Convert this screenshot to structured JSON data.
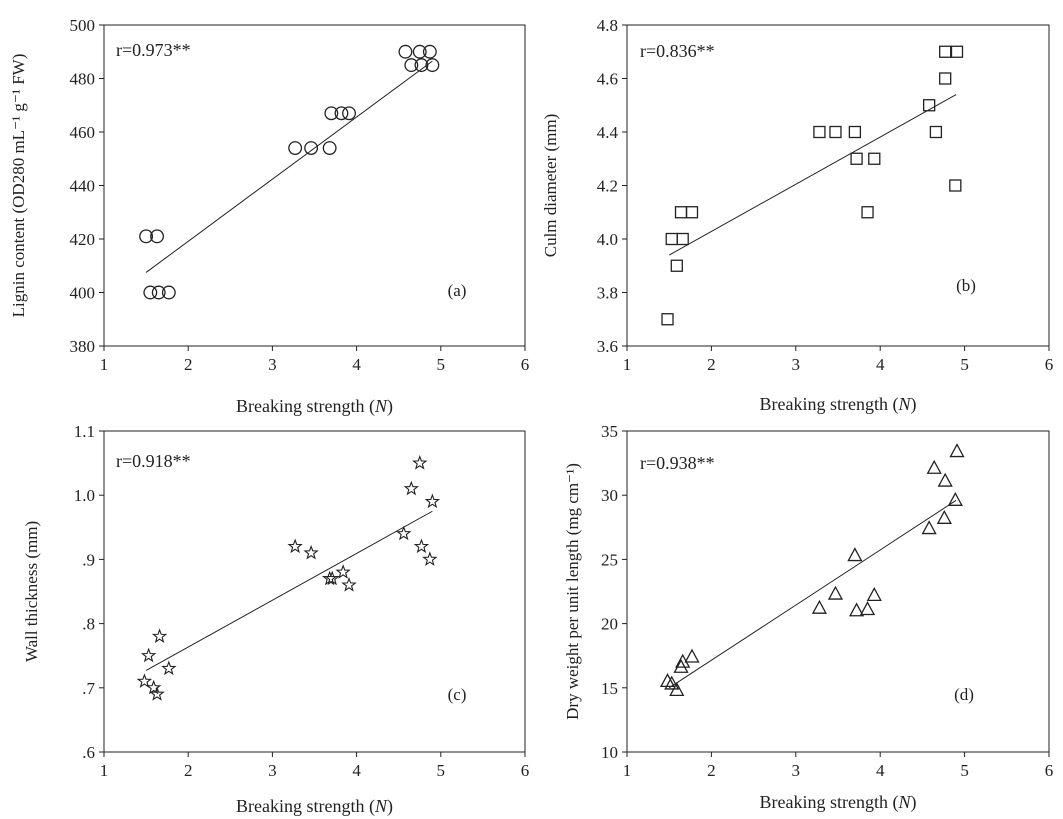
{
  "chart_data": [
    {
      "type": "scatter",
      "panel_label": "(a)",
      "annotation": "r=0.973**",
      "xlabel": "Breaking strength (N)",
      "ylabel": "Lignin content (OD280 mL⁻¹ g⁻¹ FW)",
      "xlim": [
        1,
        6
      ],
      "ylim": [
        380,
        500
      ],
      "xticks": [
        "1",
        "2",
        "3",
        "4",
        "5",
        "6"
      ],
      "yticks": [
        "380",
        "400",
        "420",
        "440",
        "460",
        "480",
        "500"
      ],
      "marker": "circle",
      "points": [
        {
          "x": 1.5,
          "y": 421
        },
        {
          "x": 1.63,
          "y": 421
        },
        {
          "x": 1.55,
          "y": 400
        },
        {
          "x": 1.65,
          "y": 400
        },
        {
          "x": 1.77,
          "y": 400
        },
        {
          "x": 3.27,
          "y": 454
        },
        {
          "x": 3.46,
          "y": 454
        },
        {
          "x": 3.68,
          "y": 454
        },
        {
          "x": 3.7,
          "y": 467
        },
        {
          "x": 3.82,
          "y": 467
        },
        {
          "x": 3.91,
          "y": 467
        },
        {
          "x": 4.58,
          "y": 490
        },
        {
          "x": 4.75,
          "y": 490
        },
        {
          "x": 4.87,
          "y": 490
        },
        {
          "x": 4.65,
          "y": 485
        },
        {
          "x": 4.77,
          "y": 485
        },
        {
          "x": 4.9,
          "y": 485
        }
      ],
      "trendline": {
        "x": [
          1.5,
          4.9
        ],
        "y": [
          407.5,
          486.5
        ]
      }
    },
    {
      "type": "scatter",
      "panel_label": "(b)",
      "annotation": "r=0.836**",
      "xlabel": "Breaking strength (N)",
      "ylabel": "Culm diameter (mm)",
      "xlim": [
        1,
        6
      ],
      "ylim": [
        3.6,
        4.8
      ],
      "xticks": [
        "1",
        "2",
        "3",
        "4",
        "5",
        "6"
      ],
      "yticks": [
        "3.6",
        "3.8",
        "4.0",
        "4.2",
        "4.4",
        "4.6",
        "4.8"
      ],
      "marker": "square",
      "points": [
        {
          "x": 1.48,
          "y": 3.7
        },
        {
          "x": 1.59,
          "y": 3.9
        },
        {
          "x": 1.53,
          "y": 4.0
        },
        {
          "x": 1.66,
          "y": 4.0
        },
        {
          "x": 1.64,
          "y": 4.1
        },
        {
          "x": 1.77,
          "y": 4.1
        },
        {
          "x": 3.28,
          "y": 4.4
        },
        {
          "x": 3.47,
          "y": 4.4
        },
        {
          "x": 3.7,
          "y": 4.4
        },
        {
          "x": 3.72,
          "y": 4.3
        },
        {
          "x": 3.93,
          "y": 4.3
        },
        {
          "x": 3.85,
          "y": 4.1
        },
        {
          "x": 4.58,
          "y": 4.5
        },
        {
          "x": 4.66,
          "y": 4.4
        },
        {
          "x": 4.77,
          "y": 4.6
        },
        {
          "x": 4.77,
          "y": 4.7
        },
        {
          "x": 4.91,
          "y": 4.7
        },
        {
          "x": 4.89,
          "y": 4.2
        }
      ],
      "trendline": {
        "x": [
          1.5,
          4.9
        ],
        "y": [
          3.94,
          4.54
        ]
      }
    },
    {
      "type": "scatter",
      "panel_label": "(c)",
      "annotation": "r=0.918**",
      "xlabel": "Breaking strength (N)",
      "ylabel": "Wall thickness (mm)",
      "xlim": [
        1,
        6
      ],
      "ylim": [
        0.6,
        1.1
      ],
      "xticks": [
        "1",
        "2",
        "3",
        "4",
        "5",
        "6"
      ],
      "yticks": [
        ".6",
        ".7",
        ".8",
        ".9",
        "1.0",
        "1.1"
      ],
      "marker": "star",
      "points": [
        {
          "x": 1.48,
          "y": 0.71
        },
        {
          "x": 1.53,
          "y": 0.75
        },
        {
          "x": 1.59,
          "y": 0.7
        },
        {
          "x": 1.63,
          "y": 0.69
        },
        {
          "x": 1.66,
          "y": 0.78
        },
        {
          "x": 1.77,
          "y": 0.73
        },
        {
          "x": 3.27,
          "y": 0.92
        },
        {
          "x": 3.46,
          "y": 0.91
        },
        {
          "x": 3.68,
          "y": 0.87
        },
        {
          "x": 3.71,
          "y": 0.87
        },
        {
          "x": 3.84,
          "y": 0.88
        },
        {
          "x": 3.91,
          "y": 0.86
        },
        {
          "x": 4.56,
          "y": 0.94
        },
        {
          "x": 4.65,
          "y": 1.01
        },
        {
          "x": 4.75,
          "y": 1.05
        },
        {
          "x": 4.77,
          "y": 0.92
        },
        {
          "x": 4.87,
          "y": 0.9
        },
        {
          "x": 4.9,
          "y": 0.99
        }
      ],
      "trendline": {
        "x": [
          1.5,
          4.9
        ],
        "y": [
          0.727,
          0.975
        ]
      }
    },
    {
      "type": "scatter",
      "panel_label": "(d)",
      "annotation": "r=0.938**",
      "xlabel": "Breaking strength (N)",
      "ylabel": "Dry weight per unit length (mg cm⁻¹)",
      "xlim": [
        1,
        6
      ],
      "ylim": [
        10,
        35
      ],
      "xticks": [
        "1",
        "2",
        "3",
        "4",
        "5",
        "6"
      ],
      "yticks": [
        "10",
        "15",
        "20",
        "25",
        "30",
        "35"
      ],
      "marker": "triangle",
      "points": [
        {
          "x": 1.48,
          "y": 15.5
        },
        {
          "x": 1.53,
          "y": 15.3
        },
        {
          "x": 1.59,
          "y": 14.8
        },
        {
          "x": 1.64,
          "y": 16.6
        },
        {
          "x": 1.66,
          "y": 17.0
        },
        {
          "x": 1.77,
          "y": 17.4
        },
        {
          "x": 3.28,
          "y": 21.2
        },
        {
          "x": 3.47,
          "y": 22.3
        },
        {
          "x": 3.7,
          "y": 25.3
        },
        {
          "x": 3.72,
          "y": 21.0
        },
        {
          "x": 3.85,
          "y": 21.1
        },
        {
          "x": 3.93,
          "y": 22.2
        },
        {
          "x": 4.58,
          "y": 27.4
        },
        {
          "x": 4.64,
          "y": 32.1
        },
        {
          "x": 4.76,
          "y": 28.2
        },
        {
          "x": 4.77,
          "y": 31.1
        },
        {
          "x": 4.89,
          "y": 29.6
        },
        {
          "x": 4.91,
          "y": 33.4
        }
      ],
      "trendline": {
        "x": [
          1.5,
          4.9
        ],
        "y": [
          15.0,
          29.6
        ]
      }
    }
  ]
}
